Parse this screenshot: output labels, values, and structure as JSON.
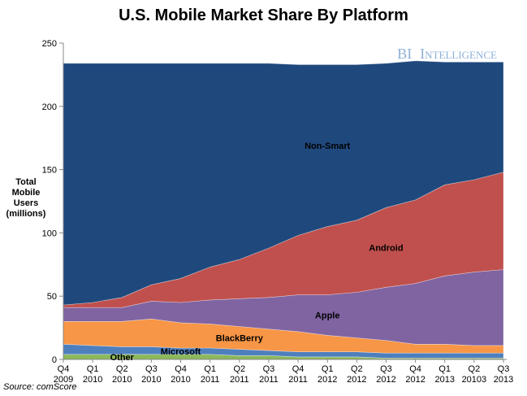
{
  "chart_data": {
    "type": "area",
    "stacked": true,
    "title": "U.S. Mobile Market Share By Platform",
    "ylabel_lines": [
      "Total",
      "Mobile",
      "Users",
      "(millions)"
    ],
    "source": "Source: comScore",
    "brand": {
      "first": "BI",
      "second": "Intelligence"
    },
    "ylim": [
      0,
      250
    ],
    "yticks": [
      0,
      50,
      100,
      150,
      200,
      250
    ],
    "categories": [
      [
        "Q4",
        "2009"
      ],
      [
        "Q1",
        "2010"
      ],
      [
        "Q2",
        "2010"
      ],
      [
        "Q3",
        "2010"
      ],
      [
        "Q4",
        "2010"
      ],
      [
        "Q1",
        "2011"
      ],
      [
        "Q2",
        "2011"
      ],
      [
        "Q3",
        "2011"
      ],
      [
        "Q4",
        "2011"
      ],
      [
        "Q1",
        "2012"
      ],
      [
        "Q2",
        "2012"
      ],
      [
        "Q3",
        "2012"
      ],
      [
        "Q4",
        "2012"
      ],
      [
        "Q1",
        "2013"
      ],
      [
        "Q2",
        "20103"
      ],
      [
        "Q3",
        "2013"
      ]
    ],
    "series": [
      {
        "name": "Other",
        "color": "#8cb85a",
        "label_index": 2,
        "values": [
          4,
          4,
          4,
          4,
          4,
          4,
          3,
          3,
          2,
          2,
          2,
          1,
          1,
          1,
          1,
          1
        ]
      },
      {
        "name": "Microsoft",
        "color": "#4e7fbd",
        "label_index": 4,
        "values": [
          8,
          7,
          6,
          6,
          5,
          5,
          5,
          4,
          4,
          4,
          4,
          4,
          4,
          4,
          4,
          4
        ]
      },
      {
        "name": "BlackBerry",
        "color": "#f79646",
        "label_index": 6,
        "values": [
          18,
          19,
          20,
          22,
          20,
          19,
          18,
          17,
          16,
          13,
          11,
          10,
          7,
          7,
          6,
          6
        ]
      },
      {
        "name": "Apple",
        "color": "#8064a2",
        "label_index": 9,
        "values": [
          11,
          11,
          11,
          14,
          16,
          19,
          22,
          25,
          29,
          32,
          36,
          42,
          48,
          54,
          58,
          60
        ]
      },
      {
        "name": "Android",
        "color": "#c0504d",
        "label_index": 11,
        "values": [
          2,
          4,
          8,
          13,
          19,
          26,
          31,
          39,
          47,
          54,
          57,
          63,
          66,
          72,
          73,
          77
        ]
      },
      {
        "name": "Non-Smart",
        "color": "#1f497d",
        "label_index": 9,
        "values": [
          191,
          189,
          185,
          175,
          170,
          161,
          155,
          146,
          135,
          128,
          123,
          114,
          110,
          97,
          93,
          87
        ]
      }
    ]
  }
}
